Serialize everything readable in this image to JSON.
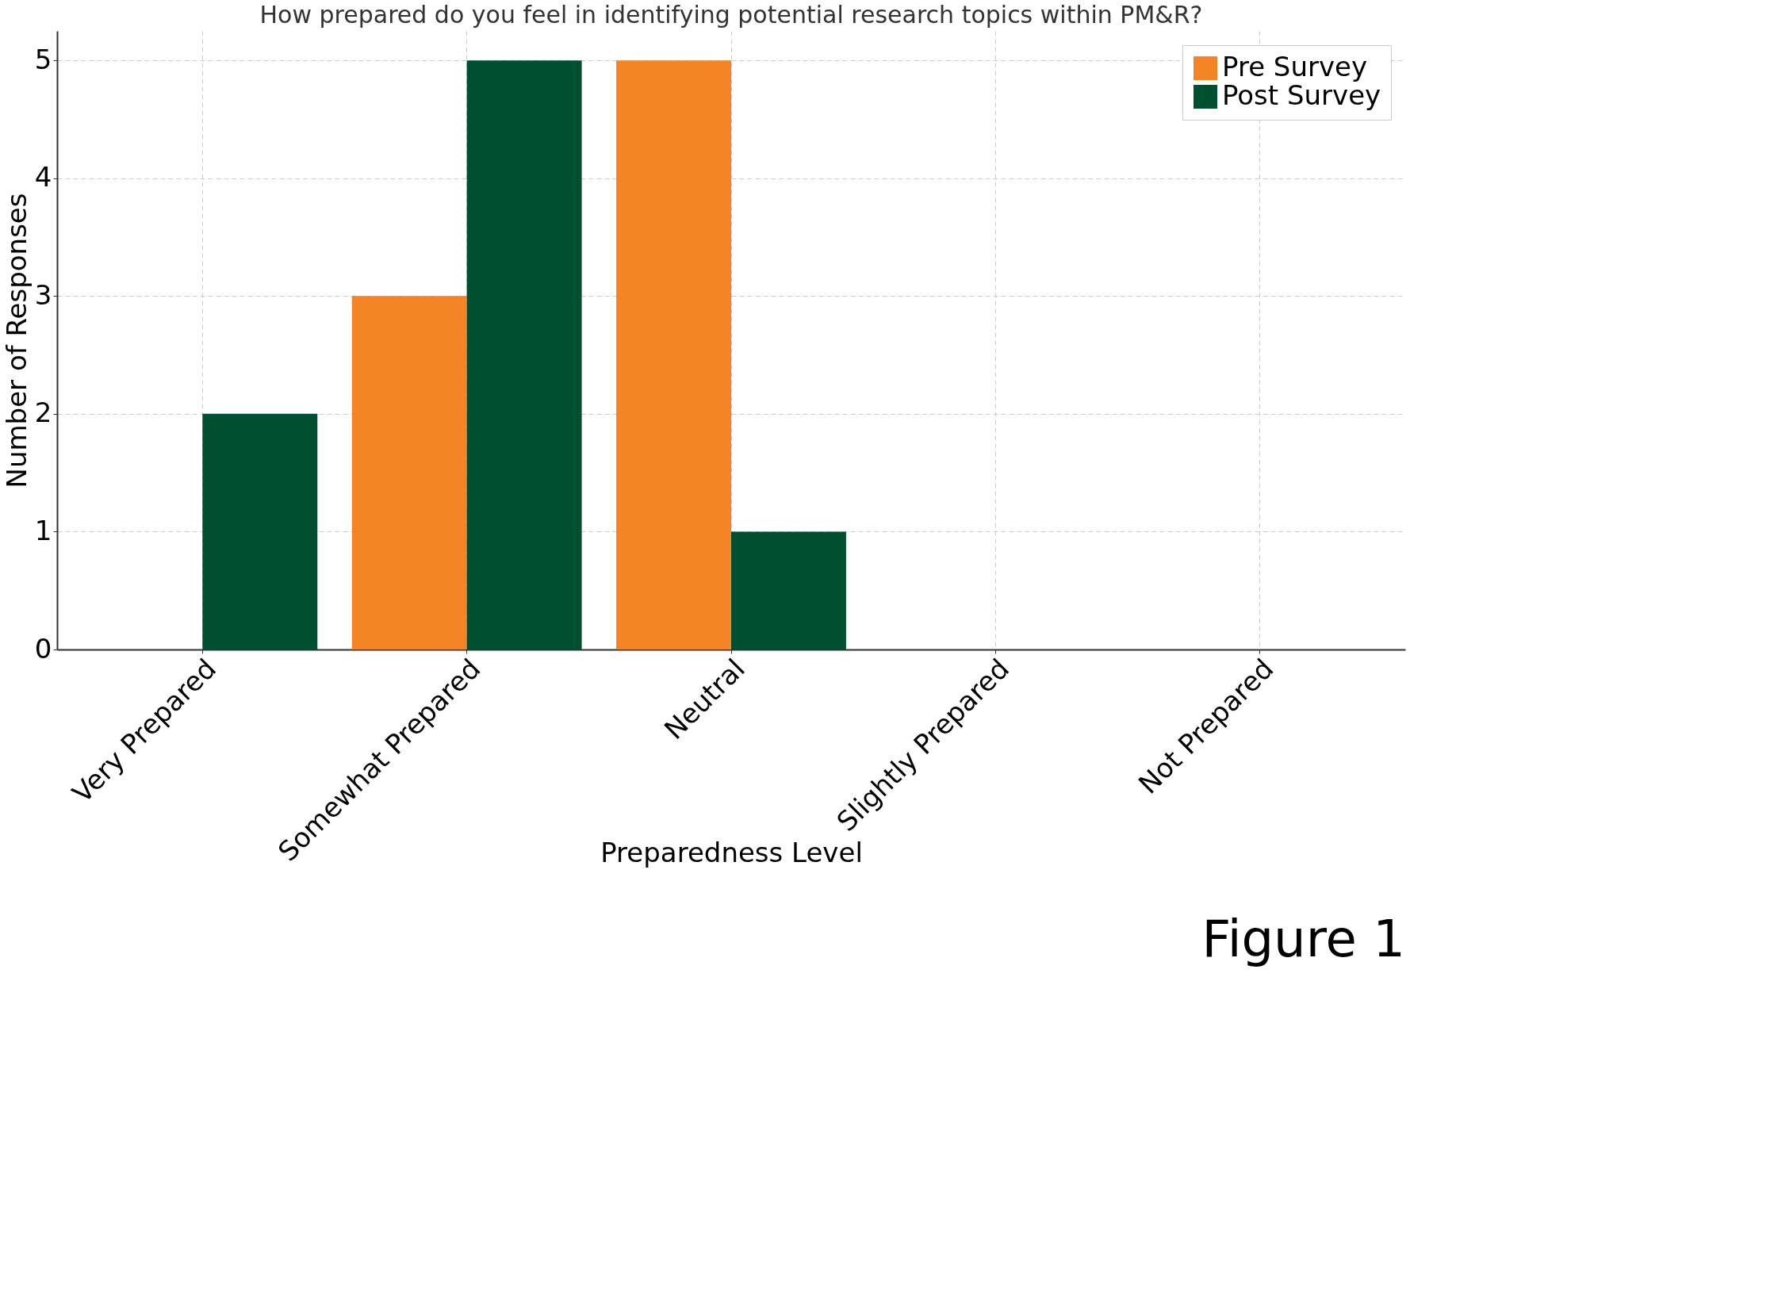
{
  "chart_data": {
    "type": "bar",
    "title": "How prepared do you feel in identifying potential research topics within PM&R?",
    "xlabel": "Preparedness Level",
    "ylabel": "Number of Responses",
    "categories": [
      "Very Prepared",
      "Somewhat Prepared",
      "Neutral",
      "Slightly Prepared",
      "Not Prepared"
    ],
    "series": [
      {
        "name": "Pre Survey",
        "color": "#f58426",
        "values": [
          0,
          3,
          5,
          0,
          0
        ]
      },
      {
        "name": "Post Survey",
        "color": "#004f30",
        "values": [
          2,
          5,
          1,
          0,
          0
        ]
      }
    ],
    "ylim": [
      0,
      5.25
    ],
    "yticks": [
      0,
      1,
      2,
      3,
      4,
      5
    ],
    "grid": true,
    "legend": "top right",
    "annotations": [
      "Figure 1"
    ]
  }
}
